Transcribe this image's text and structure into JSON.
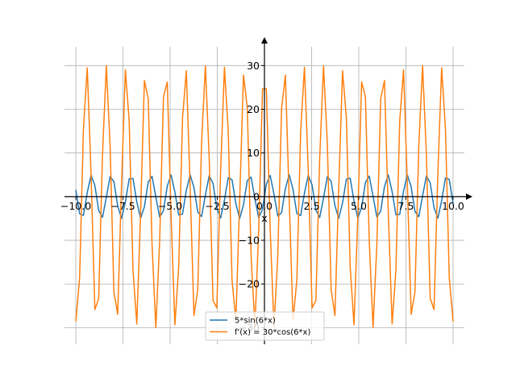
{
  "chart_data": {
    "type": "line",
    "title": "",
    "xlabel": "x",
    "ylabel": "",
    "xlim": [
      -10.6,
      10.6
    ],
    "ylim": [
      -33.8,
      34.3
    ],
    "x_ticks": [
      -10.0,
      -7.5,
      -5.0,
      -2.5,
      0.0,
      2.5,
      5.0,
      7.5,
      10.0
    ],
    "x_tick_labels": [
      "−10.0",
      "−7.5",
      "−5.0",
      "−2.5",
      "0.0",
      "2.5",
      "5.0",
      "7.5",
      "10.0"
    ],
    "y_ticks": [
      -30,
      -20,
      -10,
      0,
      10,
      20,
      30
    ],
    "y_tick_labels": [
      "−30",
      "−20",
      "−10",
      "0",
      "10",
      "20",
      "30"
    ],
    "grid": true,
    "legend_position": "bottom-center",
    "x_range": [
      -10,
      10
    ],
    "samples": 100,
    "series": [
      {
        "name": "5*sin(6*x)",
        "expression": "5*sin(6*x)",
        "amplitude": 5,
        "frequency": 6,
        "function": "sin",
        "color": "#1f77b4"
      },
      {
        "name": "f'(x) = 30*cos(6*x)",
        "expression": "30*cos(6*x)",
        "amplitude": 30,
        "frequency": 6,
        "function": "cos",
        "color": "#ff7f0e"
      }
    ]
  }
}
